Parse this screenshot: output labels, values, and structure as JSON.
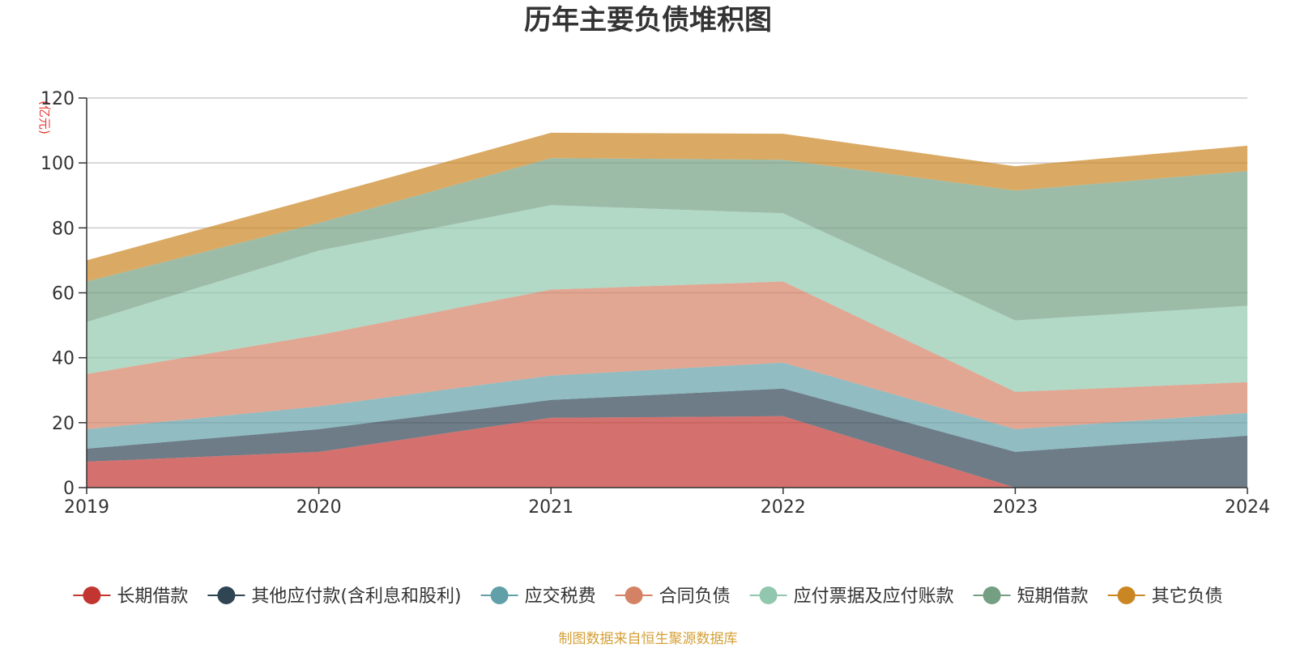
{
  "chart_data": {
    "type": "area",
    "stacked": true,
    "title": "历年主要负债堆积图",
    "unit_label": "(亿元)",
    "x": [
      "2019",
      "2020",
      "2021",
      "2022",
      "2023",
      "2024"
    ],
    "ylim": [
      0,
      120
    ],
    "y_ticks": [
      "0",
      "20",
      "40",
      "60",
      "80",
      "100",
      "120"
    ],
    "grid": true,
    "legend_position": "bottom",
    "series": [
      {
        "name": "长期借款",
        "color": "#c23531",
        "values": [
          8.0,
          11.0,
          21.5,
          22.0,
          0.0,
          0.0
        ]
      },
      {
        "name": "其他应付款(含利息和股利)",
        "color": "#2f4554",
        "values": [
          4.0,
          7.0,
          5.5,
          8.5,
          11.0,
          16.0
        ]
      },
      {
        "name": "应交税费",
        "color": "#61a0a8",
        "values": [
          6.0,
          7.0,
          7.5,
          8.0,
          7.0,
          7.0
        ]
      },
      {
        "name": "合同负债",
        "color": "#d48265",
        "values": [
          17.0,
          22.0,
          26.5,
          25.0,
          11.5,
          9.5
        ]
      },
      {
        "name": "应付票据及应付账款",
        "color": "#91c7ae",
        "values": [
          16.0,
          26.0,
          26.0,
          21.0,
          22.0,
          23.5
        ]
      },
      {
        "name": "短期借款",
        "color": "#749f83",
        "values": [
          12.5,
          8.5,
          14.5,
          16.5,
          40.0,
          41.5
        ]
      },
      {
        "name": "其它负债",
        "color": "#ca8622",
        "values": [
          6.5,
          8.0,
          7.8,
          8.0,
          7.5,
          7.8
        ]
      }
    ]
  },
  "source_note": "制图数据来自恒生聚源数据库"
}
